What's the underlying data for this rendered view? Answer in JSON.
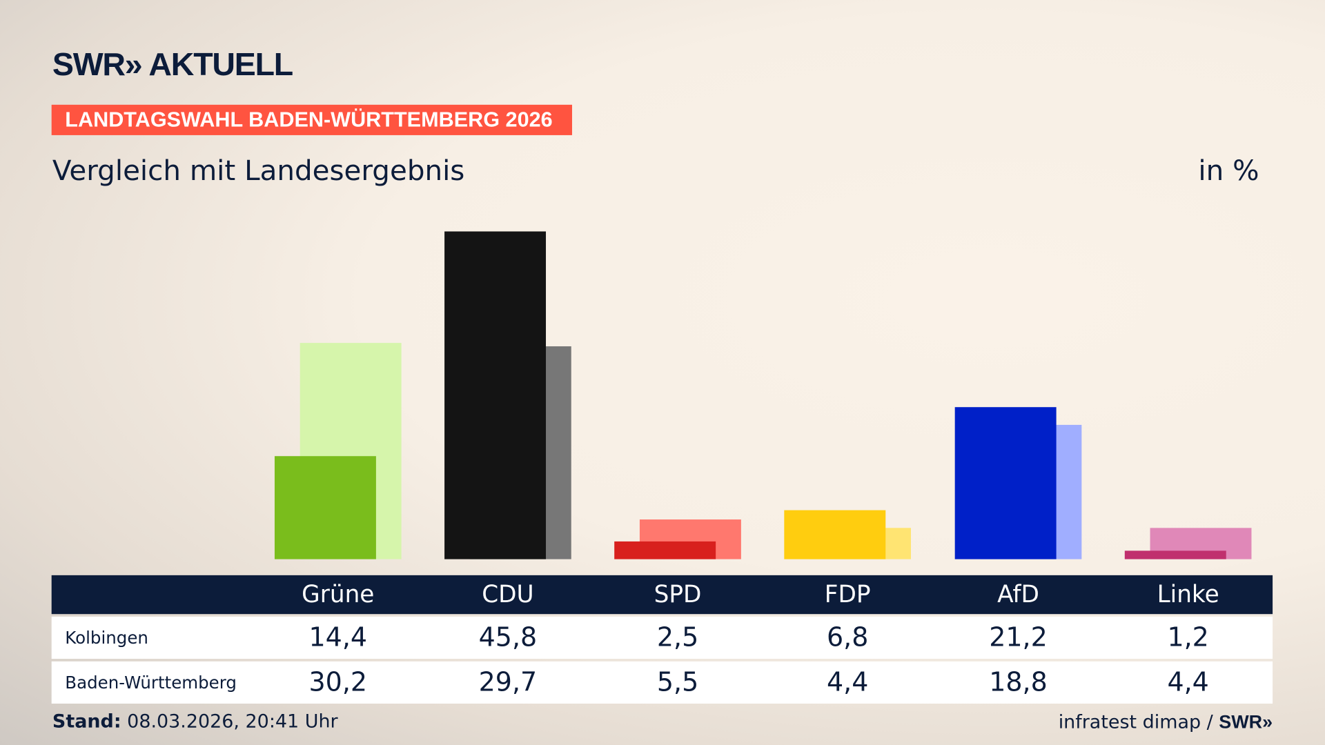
{
  "header": {
    "logo": "SWR» AKTUELL",
    "banner": "LANDTAGSWAHL BADEN-WÜRTTEMBERG 2026",
    "subtitle": "Vergleich mit Landesergebnis",
    "unit": "in %"
  },
  "chart_data": {
    "type": "bar",
    "categories": [
      "Grüne",
      "CDU",
      "SPD",
      "FDP",
      "AfD",
      "Linke"
    ],
    "series": [
      {
        "name": "Kolbingen",
        "values": [
          14.4,
          45.8,
          2.5,
          6.8,
          21.2,
          1.2
        ],
        "colors": [
          "#7abd1c",
          "#141414",
          "#d8201d",
          "#ffcd0f",
          "#0020c8",
          "#c0306e"
        ]
      },
      {
        "name": "Baden-Württemberg",
        "values": [
          30.2,
          29.7,
          5.5,
          4.4,
          18.8,
          4.4
        ],
        "colors": [
          "#d6f5ab",
          "#777777",
          "#ff786e",
          "#ffe472",
          "#a0aeff",
          "#e088b8"
        ]
      }
    ],
    "labels": {
      "Kolbingen": [
        "14,4",
        "45,8",
        "2,5",
        "6,8",
        "21,2",
        "1,2"
      ],
      "Baden-Württemberg": [
        "30,2",
        "29,7",
        "5,5",
        "4,4",
        "18,8",
        "4,4"
      ]
    },
    "ylim": [
      0,
      45.8
    ]
  },
  "footer": {
    "stand_label": "Stand:",
    "stand_value": " 08.03.2026, 20:41 Uhr",
    "source": "infratest dimap / ",
    "source_logo": "SWR»"
  }
}
